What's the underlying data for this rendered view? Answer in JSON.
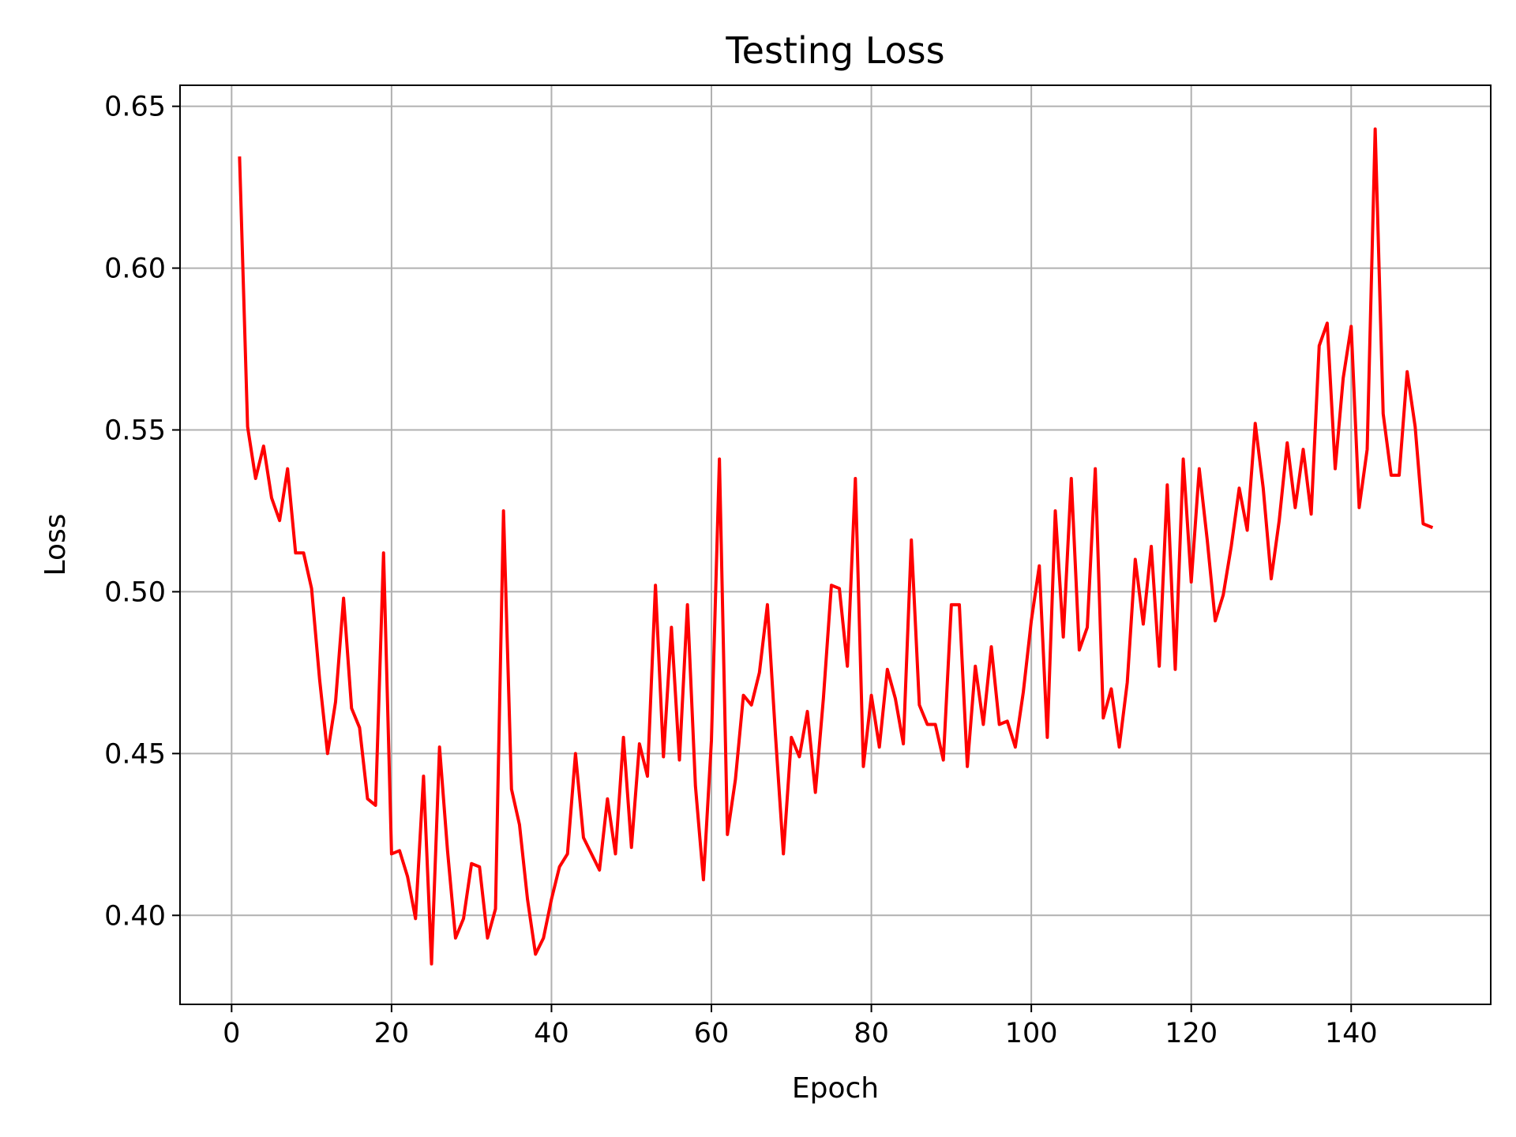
{
  "chart_data": {
    "type": "line",
    "title": "Testing Loss",
    "xlabel": "Epoch",
    "ylabel": "Loss",
    "xlim": [
      -6.45,
      157.45
    ],
    "ylim": [
      0.3725,
      0.6565
    ],
    "grid": true,
    "x_ticks": [
      0,
      20,
      40,
      60,
      80,
      100,
      120,
      140
    ],
    "y_ticks": [
      0.4,
      0.45,
      0.5,
      0.55,
      0.6,
      0.65
    ],
    "x_tick_labels": [
      "0",
      "20",
      "40",
      "60",
      "80",
      "100",
      "120",
      "140"
    ],
    "y_tick_labels": [
      "0.40",
      "0.45",
      "0.50",
      "0.55",
      "0.60",
      "0.65"
    ],
    "series": [
      {
        "color": "#ff0000",
        "x": [
          1,
          2,
          3,
          4,
          5,
          6,
          7,
          8,
          9,
          10,
          11,
          12,
          13,
          14,
          15,
          16,
          17,
          18,
          19,
          20,
          21,
          22,
          23,
          24,
          25,
          26,
          27,
          28,
          29,
          30,
          31,
          32,
          33,
          34,
          35,
          36,
          37,
          38,
          39,
          40,
          41,
          42,
          43,
          44,
          45,
          46,
          47,
          48,
          49,
          50,
          51,
          52,
          53,
          54,
          55,
          56,
          57,
          58,
          59,
          60,
          61,
          62,
          63,
          64,
          65,
          66,
          67,
          68,
          69,
          70,
          71,
          72,
          73,
          74,
          75,
          76,
          77,
          78,
          79,
          80,
          81,
          82,
          83,
          84,
          85,
          86,
          87,
          88,
          89,
          90,
          91,
          92,
          93,
          94,
          95,
          96,
          97,
          98,
          99,
          100,
          101,
          102,
          103,
          104,
          105,
          106,
          107,
          108,
          109,
          110,
          111,
          112,
          113,
          114,
          115,
          116,
          117,
          118,
          119,
          120,
          121,
          122,
          123,
          124,
          125,
          126,
          127,
          128,
          129,
          130,
          131,
          132,
          133,
          134,
          135,
          136,
          137,
          138,
          139,
          140,
          141,
          142,
          143,
          144,
          145,
          146,
          147,
          148,
          149,
          150
        ],
        "y": [
          0.634,
          0.551,
          0.535,
          0.545,
          0.529,
          0.522,
          0.538,
          0.512,
          0.512,
          0.501,
          0.473,
          0.45,
          0.466,
          0.498,
          0.464,
          0.458,
          0.436,
          0.434,
          0.512,
          0.419,
          0.42,
          0.412,
          0.399,
          0.443,
          0.385,
          0.452,
          0.42,
          0.393,
          0.399,
          0.416,
          0.415,
          0.393,
          0.402,
          0.525,
          0.439,
          0.428,
          0.405,
          0.388,
          0.393,
          0.405,
          0.415,
          0.419,
          0.45,
          0.424,
          0.419,
          0.414,
          0.436,
          0.419,
          0.455,
          0.421,
          0.453,
          0.443,
          0.502,
          0.449,
          0.489,
          0.448,
          0.496,
          0.44,
          0.411,
          0.454,
          0.541,
          0.425,
          0.442,
          0.468,
          0.465,
          0.475,
          0.496,
          0.456,
          0.419,
          0.455,
          0.449,
          0.463,
          0.438,
          0.467,
          0.502,
          0.501,
          0.477,
          0.535,
          0.446,
          0.468,
          0.452,
          0.476,
          0.467,
          0.453,
          0.516,
          0.465,
          0.459,
          0.459,
          0.448,
          0.496,
          0.496,
          0.446,
          0.477,
          0.459,
          0.483,
          0.459,
          0.46,
          0.452,
          0.469,
          0.491,
          0.508,
          0.455,
          0.525,
          0.486,
          0.535,
          0.482,
          0.489,
          0.538,
          0.461,
          0.47,
          0.452,
          0.472,
          0.51,
          0.49,
          0.514,
          0.477,
          0.533,
          0.476,
          0.541,
          0.503,
          0.538,
          0.516,
          0.491,
          0.499,
          0.514,
          0.532,
          0.519,
          0.552,
          0.532,
          0.504,
          0.522,
          0.546,
          0.526,
          0.544,
          0.524,
          0.576,
          0.583,
          0.538,
          0.566,
          0.582,
          0.526,
          0.544,
          0.643,
          0.555,
          0.536,
          0.536,
          0.568,
          0.551,
          0.521,
          0.52
        ]
      }
    ]
  }
}
